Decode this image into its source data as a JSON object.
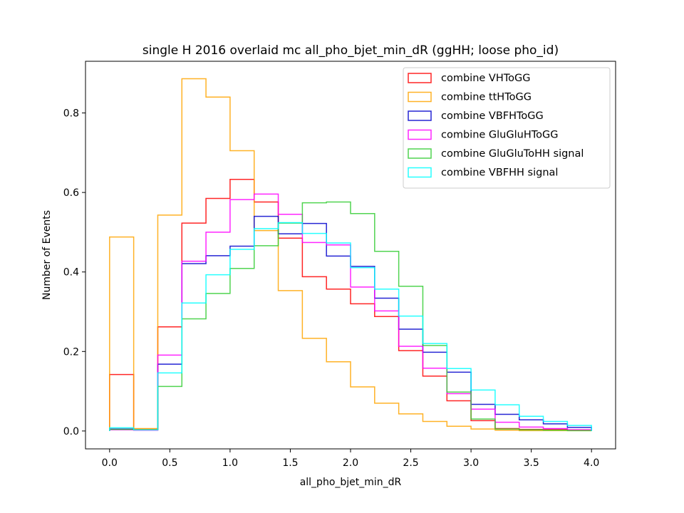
{
  "chart_data": {
    "type": "line",
    "histogram": true,
    "title": "single H 2016 overlaid mc all_pho_bjet_min_dR (ggHH; loose pho_id)",
    "xlabel": "all_pho_bjet_min_dR",
    "ylabel": "Number of Events",
    "xlim": [
      -0.2,
      4.2
    ],
    "ylim": [
      -0.045,
      0.93
    ],
    "xticks": [
      "0.0",
      "0.5",
      "1.0",
      "1.5",
      "2.0",
      "2.5",
      "3.0",
      "3.5",
      "4.0"
    ],
    "yticks": [
      "0.0",
      "0.2",
      "0.4",
      "0.6",
      "0.8"
    ],
    "grid": false,
    "legend_position": "top-right",
    "bin_edges": [
      0.0,
      0.2,
      0.4,
      0.6,
      0.8,
      1.0,
      1.2,
      1.4,
      1.6,
      1.8,
      2.0,
      2.2,
      2.4,
      2.6,
      2.8,
      3.0,
      3.2,
      3.4,
      3.6,
      3.8,
      4.0
    ],
    "series": [
      {
        "name": "combine VHToGG",
        "color": "#ff0000",
        "values": [
          0.142,
          0.004,
          0.262,
          0.523,
          0.585,
          0.633,
          0.576,
          0.485,
          0.388,
          0.357,
          0.32,
          0.288,
          0.202,
          0.138,
          0.076,
          0.026,
          0.006,
          0.004,
          0.004,
          0.003
        ]
      },
      {
        "name": "combine ttHToGG",
        "color": "#ffa500",
        "values": [
          0.488,
          0.006,
          0.543,
          0.886,
          0.84,
          0.705,
          0.504,
          0.353,
          0.233,
          0.174,
          0.111,
          0.07,
          0.043,
          0.024,
          0.012,
          0.005,
          0.002,
          0.001,
          0.001,
          0.001
        ]
      },
      {
        "name": "combine VBFHToGG",
        "color": "#0000cd",
        "values": [
          0.005,
          0.003,
          0.168,
          0.421,
          0.441,
          0.465,
          0.54,
          0.496,
          0.522,
          0.44,
          0.414,
          0.334,
          0.256,
          0.198,
          0.148,
          0.067,
          0.042,
          0.028,
          0.018,
          0.009
        ]
      },
      {
        "name": "combine GluGluHToGG",
        "color": "#ff00ff",
        "values": [
          0.003,
          0.002,
          0.191,
          0.427,
          0.5,
          0.582,
          0.596,
          0.545,
          0.474,
          0.468,
          0.362,
          0.302,
          0.213,
          0.158,
          0.094,
          0.055,
          0.022,
          0.01,
          0.006,
          0.003
        ]
      },
      {
        "name": "combine GluGluToHH signal",
        "color": "#32cd32",
        "values": [
          0.004,
          0.003,
          0.112,
          0.282,
          0.346,
          0.409,
          0.466,
          0.523,
          0.574,
          0.576,
          0.547,
          0.452,
          0.364,
          0.215,
          0.098,
          0.03,
          0.005,
          0.003,
          0.002,
          0.001
        ]
      },
      {
        "name": "combine VBFHH signal",
        "color": "#00ffff",
        "values": [
          0.008,
          0.003,
          0.146,
          0.322,
          0.393,
          0.457,
          0.509,
          0.524,
          0.497,
          0.473,
          0.411,
          0.357,
          0.289,
          0.22,
          0.157,
          0.103,
          0.066,
          0.037,
          0.024,
          0.014
        ]
      }
    ]
  }
}
